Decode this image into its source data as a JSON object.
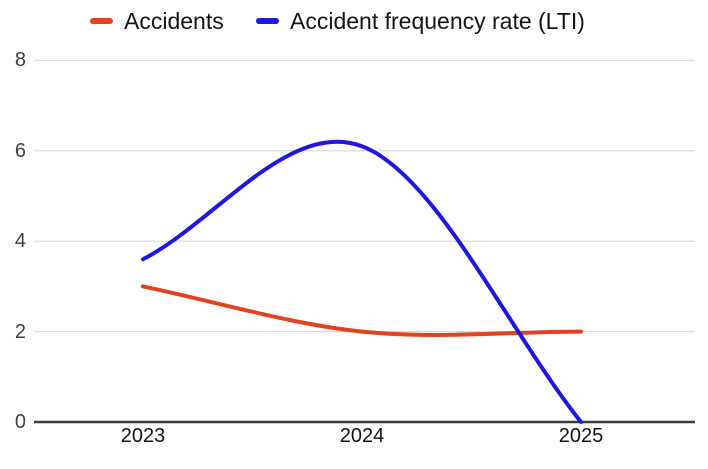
{
  "legend": {
    "items_note": "legend labels mirror chart series names"
  },
  "chart_data": {
    "type": "line",
    "smooth": true,
    "title": "",
    "xlabel": "",
    "ylabel": "",
    "x": [
      "2023",
      "2024",
      "2025"
    ],
    "series": [
      {
        "name": "Accidents",
        "color": "#e2431e",
        "values": [
          3,
          2,
          2
        ]
      },
      {
        "name": "Accident frequency rate (LTI)",
        "color": "#2016e0",
        "values": [
          3.6,
          6.1,
          0
        ]
      }
    ],
    "ylim": [
      0,
      8
    ],
    "yticks": [
      0,
      2,
      4,
      6,
      8
    ],
    "grid": true,
    "legend_position": "top"
  },
  "colors": {
    "background": "#ffffff",
    "gridline": "#d9d9d9",
    "axis_line": "#3d3d3d",
    "y_tick_label": "#404040",
    "x_tick_label": "#141414",
    "legend_text": "#141414"
  }
}
